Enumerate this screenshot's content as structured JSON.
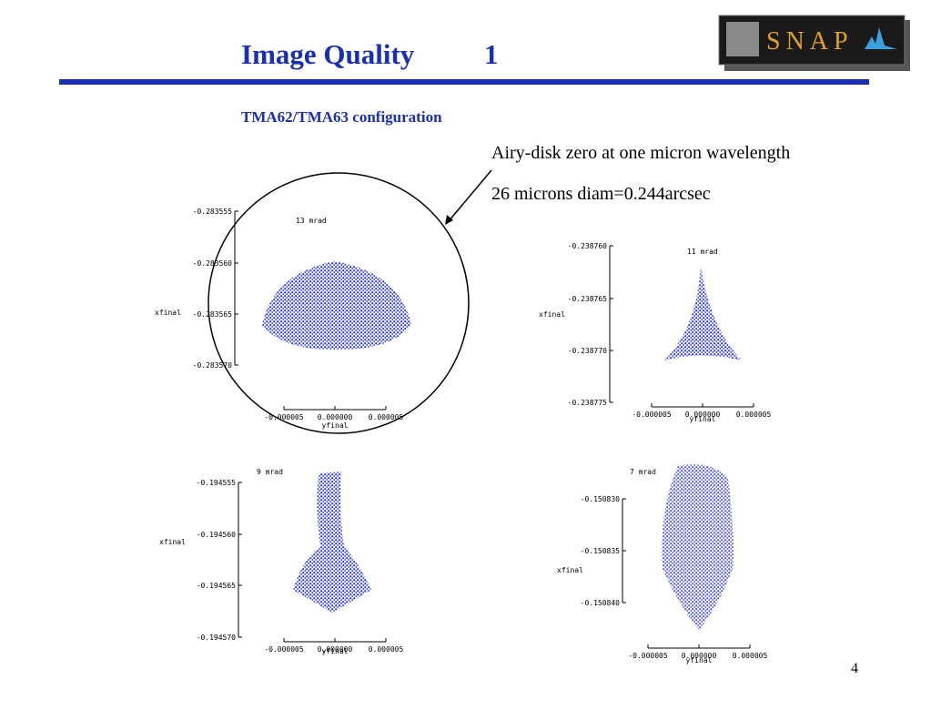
{
  "header": {
    "title": "Image Quality",
    "number": "1",
    "logo": "SNAP"
  },
  "subtitle": "TMA62/TMA63  configuration",
  "notes": [
    "Airy-disk zero at one micron wavelength",
    "26 microns diam=0.244arcsec"
  ],
  "plots": [
    {
      "label": "13 mrad",
      "ylabel": "xfinal",
      "xlabel": "yfinal",
      "yticks": [
        "-0.283555",
        "-0.283560",
        "-0.283565",
        "-0.283570"
      ],
      "xticks": [
        "-0.000005",
        "0.000000",
        "0.000005"
      ]
    },
    {
      "label": "11 mrad",
      "ylabel": "xfinal",
      "xlabel": "yfinal",
      "yticks": [
        "-0.238760",
        "-0.238765",
        "-0.238770",
        "-0.238775"
      ],
      "xticks": [
        "-0.000005",
        "0.000000",
        "0.000005"
      ]
    },
    {
      "label": "9 mrad",
      "ylabel": "xfinal",
      "xlabel": "yfinal",
      "yticks": [
        "-0.194555",
        "-0.194560",
        "-0.194565",
        "-0.194570"
      ],
      "xticks": [
        "-0.000005",
        "0.000000",
        "0.000005"
      ]
    },
    {
      "label": "7 mrad",
      "ylabel": "xfinal",
      "xlabel": "yfinal",
      "yticks": [
        "-0.150830",
        "-0.150835",
        "-0.150840"
      ],
      "xticks": [
        "-0.000005",
        "0.000000",
        "0.000005"
      ]
    }
  ],
  "page_number": "4"
}
